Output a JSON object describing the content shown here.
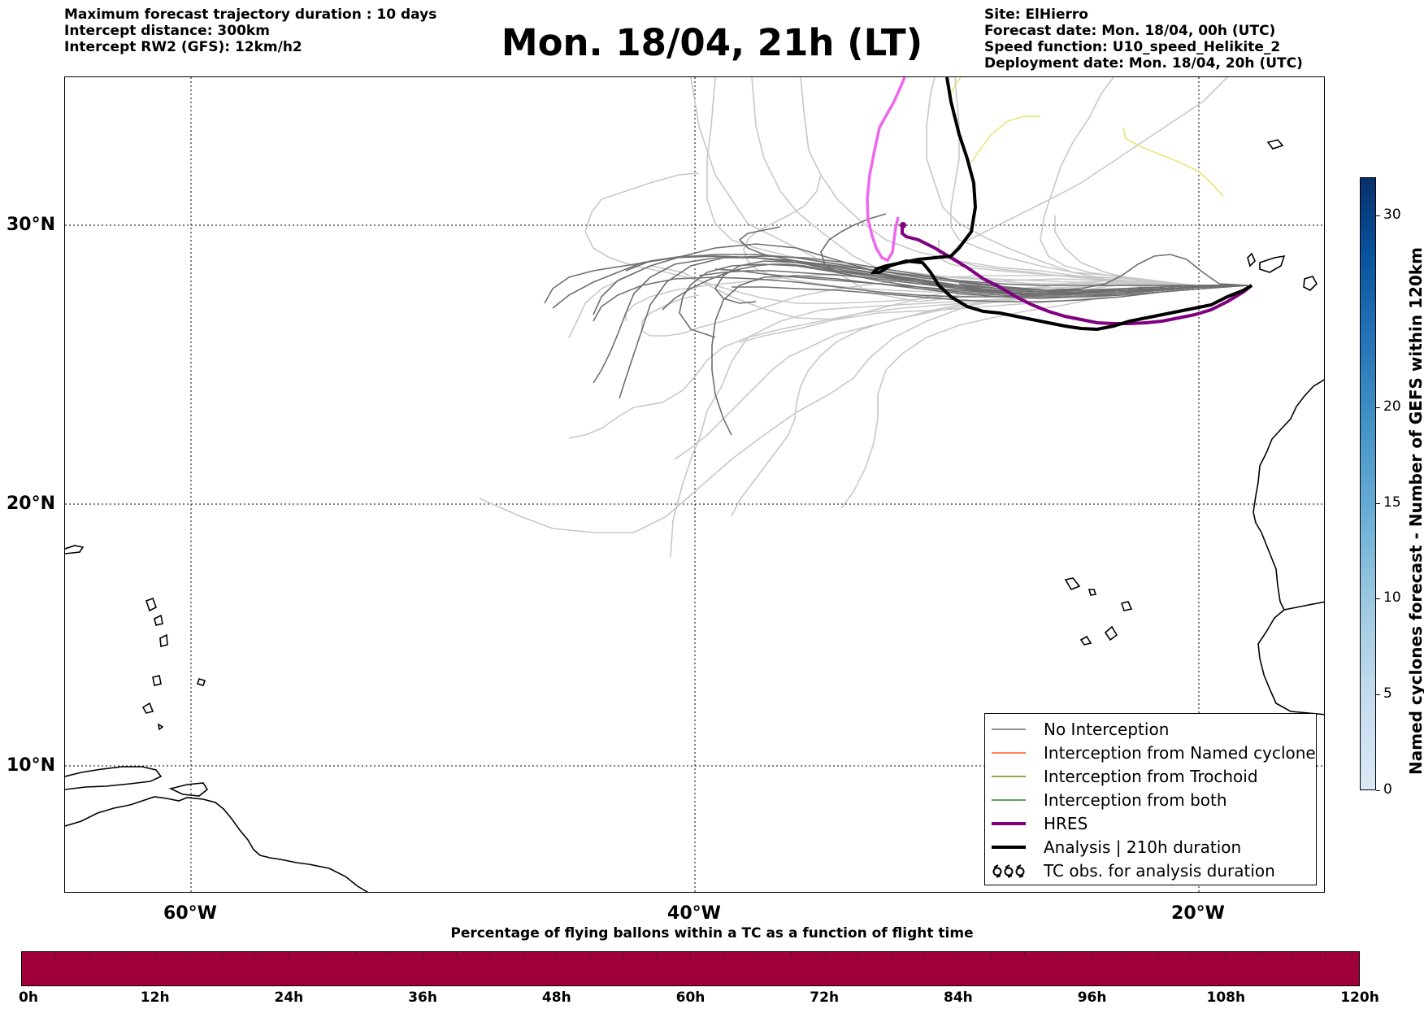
{
  "header": {
    "left_lines": [
      "Maximum forecast trajectory duration : 10 days",
      "Intercept distance: 300km",
      "Intercept RW2 (GFS):  12km/h2"
    ],
    "title": "Mon. 18/04, 21h (LT)",
    "right_lines": [
      "Site: ElHierro",
      "Forecast date: Mon. 18/04, 00h (UTC)",
      "Speed function: U10_speed_Helikite_2",
      "Deployment date: Mon. 18/04, 20h (UTC)"
    ]
  },
  "map": {
    "lat_labels": [
      "30°N",
      "20°N",
      "10°N"
    ],
    "lon_labels": [
      "60°W",
      "40°W",
      "20°W"
    ],
    "gridline_style": "dotted",
    "colors": {
      "no_interception": "#6e6e6e",
      "ensemble_light": "#c8c8c8",
      "named_cyclone": "#ff5a1e",
      "trochoid": "#808000",
      "both": "#228b22",
      "hres": "#800080",
      "analysis": "#000000",
      "pink_track": "#ee66ee",
      "yellow_track": "#e6e066"
    }
  },
  "legend": {
    "items": [
      {
        "label": "No Interception",
        "color": "#6e6e6e",
        "width": 1.5,
        "kind": "line"
      },
      {
        "label": "Interception from Named cyclone",
        "color": "#ff5a1e",
        "width": 1.5,
        "kind": "line"
      },
      {
        "label": "Interception from Trochoid",
        "color": "#808000",
        "width": 1.5,
        "kind": "line"
      },
      {
        "label": "Interception from both",
        "color": "#228b22",
        "width": 1.5,
        "kind": "line"
      },
      {
        "label": "HRES",
        "color": "#800080",
        "width": 4,
        "kind": "line"
      },
      {
        "label": "Analysis | 210h duration",
        "color": "#000000",
        "width": 4,
        "kind": "line"
      },
      {
        "label": "TC obs. for analysis duration",
        "color": "#000000",
        "kind": "tc-symbols",
        "symbols": "ઠઠઠ"
      }
    ]
  },
  "colorbar_vertical": {
    "label": "Named cyclones forecast - Number of GEFS within 120km",
    "ticks": [
      "0",
      "5",
      "10",
      "15",
      "20",
      "30"
    ],
    "tick_values": [
      0,
      5,
      10,
      15,
      20,
      30
    ],
    "range": [
      0,
      32
    ]
  },
  "colorbar_horizontal": {
    "label": "Percentage of flying ballons within a TC as a function of flight time",
    "color": "#a0003a",
    "ticks": [
      "0h",
      "12h",
      "24h",
      "36h",
      "48h",
      "60h",
      "72h",
      "84h",
      "96h",
      "108h",
      "120h"
    ]
  }
}
